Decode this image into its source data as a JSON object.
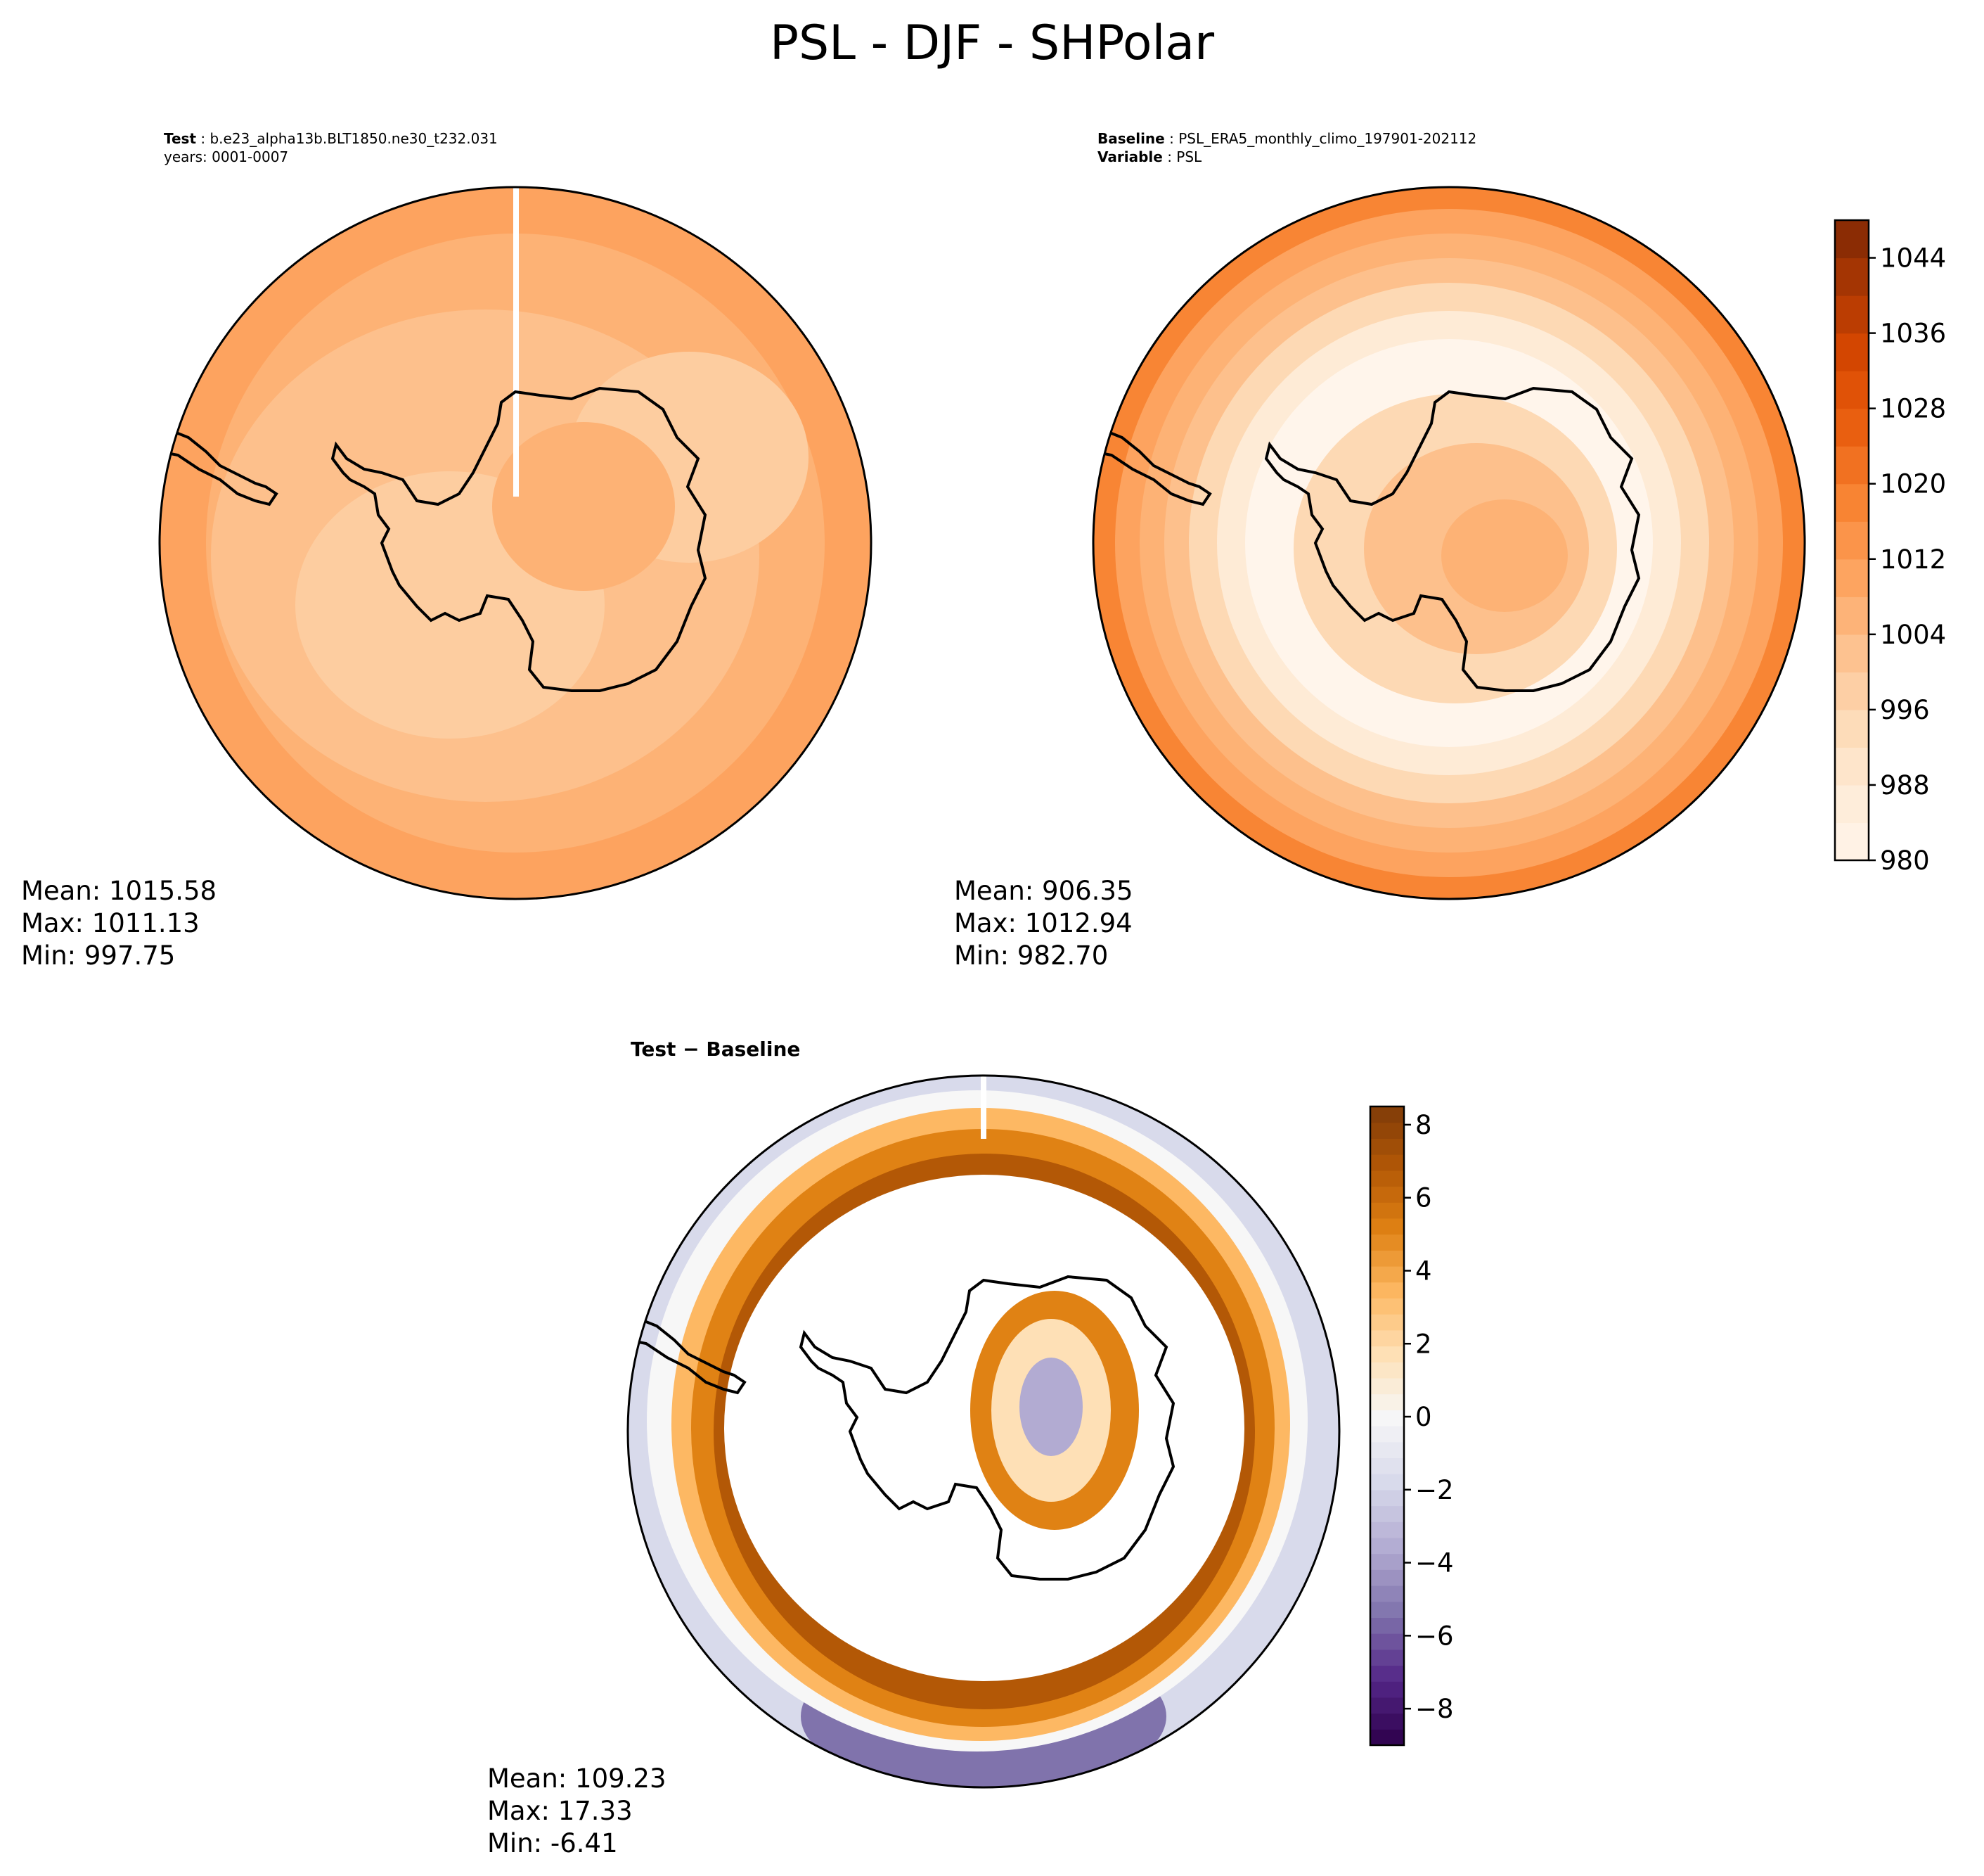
{
  "figure": {
    "title": "PSL - DJF - SHPolar"
  },
  "panels": {
    "test": {
      "label": "Test",
      "case": "b.e23_alpha13b.BLT1850.ne30_t232.031",
      "years": "years: 0001-0007",
      "stats": {
        "mean": "Mean: 1015.58",
        "max": "Max: 1011.13",
        "min": "Min: 997.75"
      }
    },
    "baseline": {
      "label": "Baseline",
      "case": "PSL_ERA5_monthly_climo_197901-202112",
      "variable_label": "Variable",
      "variable": "PSL",
      "stats": {
        "mean": "Mean: 906.35",
        "max": "Max: 1012.94",
        "min": "Min: 982.70"
      }
    },
    "diff": {
      "title": "Test − Baseline",
      "stats": {
        "mean": "Mean: 109.23",
        "max": "Max: 17.33",
        "min": "Min: -6.41"
      }
    }
  },
  "chart_data": [
    {
      "type": "heatmap",
      "name": "Test",
      "projection": "south-polar-stereographic",
      "colormap": "Oranges",
      "colorbar": {
        "range": [
          980,
          1048
        ],
        "ticks": [
          980,
          988,
          996,
          1004,
          1012,
          1020,
          1028,
          1036,
          1044
        ]
      },
      "approx_field": {
        "outer_ring": 1010,
        "southern_ocean": 998,
        "antarctic_interior": 1006
      },
      "stats": {
        "mean": 1015.58,
        "max": 1011.13,
        "min": 997.75
      }
    },
    {
      "type": "heatmap",
      "name": "Baseline",
      "projection": "south-polar-stereographic",
      "colormap": "Oranges",
      "colorbar": {
        "range": [
          980,
          1048
        ],
        "ticks": [
          980,
          988,
          996,
          1004,
          1012,
          1020,
          1028,
          1036,
          1044
        ]
      },
      "approx_field": {
        "outer_ring": 1012,
        "southern_ocean": 984,
        "antarctic_interior": 1004
      },
      "stats": {
        "mean": 906.35,
        "max": 1012.94,
        "min": 982.7
      }
    },
    {
      "type": "heatmap",
      "name": "Test − Baseline",
      "projection": "south-polar-stereographic",
      "colormap": "PuOr_r",
      "colorbar": {
        "range": [
          -9,
          8.5
        ],
        "ticks": [
          -8,
          -6,
          -4,
          -2,
          0,
          2,
          4,
          6,
          8
        ]
      },
      "approx_field": {
        "ocean_ring": 8,
        "outer_edge": -5,
        "ocean_interior": "masked",
        "antarctic_interior": -4
      },
      "stats": {
        "mean": 109.23,
        "max": 17.33,
        "min": -6.41
      }
    }
  ],
  "colors": {
    "oranges": [
      "#fff5eb",
      "#feebd6",
      "#fdd9b4",
      "#fdc08c",
      "#fda35f",
      "#f88534",
      "#eb6112",
      "#d94801",
      "#ad3803",
      "#7f2704"
    ],
    "puor_r_neg": [
      "#2d004b",
      "#542788",
      "#8073ac",
      "#b2abd2",
      "#d8daeb",
      "#f7f7f7"
    ],
    "puor_r_pos": [
      "#f7f7f7",
      "#fee0b6",
      "#fdb863",
      "#e08214",
      "#b35806",
      "#7f3b08"
    ]
  }
}
